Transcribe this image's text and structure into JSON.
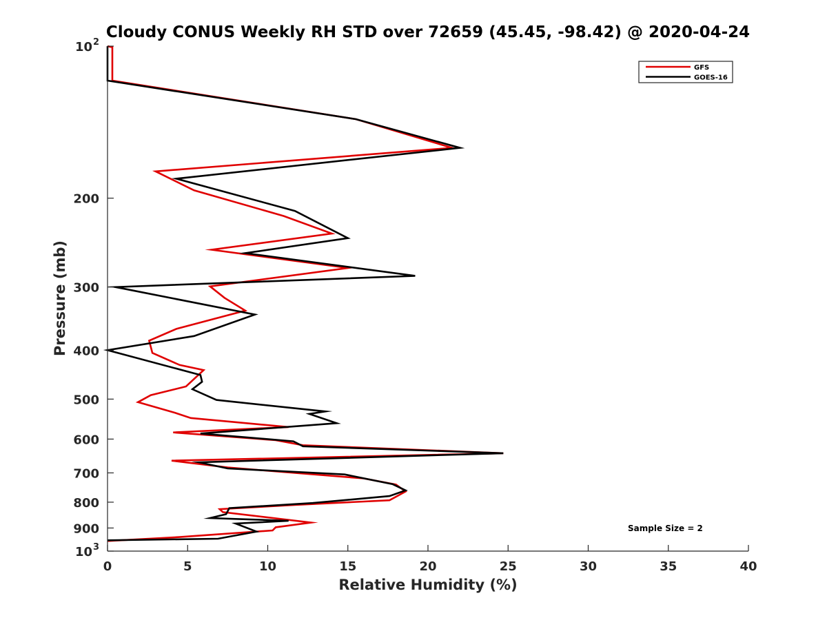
{
  "chart_data": {
    "type": "line",
    "title": "Cloudy CONUS Weekly RH STD over 72659 (45.45, -98.42) @ 2020-04-24",
    "xlabel": "Relative Humidity (%)",
    "ylabel": "Pressure (mb)",
    "xlim": [
      0,
      40
    ],
    "ylim": [
      100,
      1000
    ],
    "y_scale": "log",
    "y_reversed": true,
    "grid": false,
    "legend_position": "top-right",
    "x_ticks": [
      "0",
      "5",
      "10",
      "15",
      "20",
      "25",
      "30",
      "35",
      "40"
    ],
    "y_ticks": [
      {
        "value": 100,
        "label": "10",
        "sup": "2"
      },
      {
        "value": 200,
        "label": "200",
        "sup": ""
      },
      {
        "value": 300,
        "label": "300",
        "sup": ""
      },
      {
        "value": 400,
        "label": "400",
        "sup": ""
      },
      {
        "value": 500,
        "label": "500",
        "sup": ""
      },
      {
        "value": 600,
        "label": "600",
        "sup": ""
      },
      {
        "value": 700,
        "label": "700",
        "sup": ""
      },
      {
        "value": 800,
        "label": "800",
        "sup": ""
      },
      {
        "value": 900,
        "label": "900",
        "sup": ""
      },
      {
        "value": 1000,
        "label": "10",
        "sup": "3"
      }
    ],
    "annotation": "Sample Size = 2",
    "series": [
      {
        "name": "GFS",
        "color": "#e00000",
        "points": [
          [
            0,
            100
          ],
          [
            0.3,
            100.5
          ],
          [
            0.3,
            117
          ],
          [
            15.5,
            139.5
          ],
          [
            21.5,
            159
          ],
          [
            3,
            177
          ],
          [
            5.4,
            193
          ],
          [
            11,
            217
          ],
          [
            14,
            235
          ],
          [
            6.5,
            253
          ],
          [
            15,
            275
          ],
          [
            6.4,
            299
          ],
          [
            7.3,
            315
          ],
          [
            8.6,
            334
          ],
          [
            4.3,
            363
          ],
          [
            2.6,
            383
          ],
          [
            2.8,
            405
          ],
          [
            4.5,
            428
          ],
          [
            6,
            438
          ],
          [
            4.9,
            472
          ],
          [
            2.7,
            491
          ],
          [
            1.9,
            507
          ],
          [
            4.2,
            532
          ],
          [
            5.2,
            545
          ],
          [
            11.3,
            568
          ],
          [
            4.1,
            582
          ],
          [
            10.5,
            603
          ],
          [
            12.2,
            617
          ],
          [
            24.7,
            640
          ],
          [
            4.0,
            662
          ],
          [
            7.5,
            683
          ],
          [
            16,
            718
          ],
          [
            18,
            738
          ],
          [
            18.6,
            762
          ],
          [
            17.6,
            793
          ],
          [
            11.7,
            810
          ],
          [
            7.0,
            826
          ],
          [
            7.2,
            837
          ],
          [
            12.7,
            878
          ],
          [
            10.5,
            897
          ],
          [
            10.3,
            910
          ],
          [
            4.5,
            938
          ],
          [
            0,
            955
          ]
        ]
      },
      {
        "name": "GOES-16",
        "color": "#000000",
        "points": [
          [
            0,
            100
          ],
          [
            0,
            117
          ],
          [
            15.5,
            139.5
          ],
          [
            22,
            159
          ],
          [
            4.3,
            183
          ],
          [
            11.7,
            212
          ],
          [
            15.0,
            240
          ],
          [
            8.6,
            257
          ],
          [
            19.2,
            285
          ],
          [
            0.5,
            300
          ],
          [
            9.2,
            340
          ],
          [
            5.4,
            375
          ],
          [
            0,
            400
          ],
          [
            5.8,
            448
          ],
          [
            5.9,
            462
          ],
          [
            5.3,
            478
          ],
          [
            6.8,
            502
          ],
          [
            13.6,
            529
          ],
          [
            12.6,
            535
          ],
          [
            14.3,
            558
          ],
          [
            5.8,
            585
          ],
          [
            11.6,
            606
          ],
          [
            12.2,
            620
          ],
          [
            24.7,
            640
          ],
          [
            5.7,
            667
          ],
          [
            7.5,
            686
          ],
          [
            14.8,
            705
          ],
          [
            17.8,
            737
          ],
          [
            18.6,
            758
          ],
          [
            17.6,
            778
          ],
          [
            12.8,
            803
          ],
          [
            7.6,
            822
          ],
          [
            7.4,
            845
          ],
          [
            6.4,
            860
          ],
          [
            11.3,
            871
          ],
          [
            8.0,
            882
          ],
          [
            9.3,
            915
          ],
          [
            6.9,
            945
          ],
          [
            0,
            952
          ]
        ]
      }
    ]
  }
}
